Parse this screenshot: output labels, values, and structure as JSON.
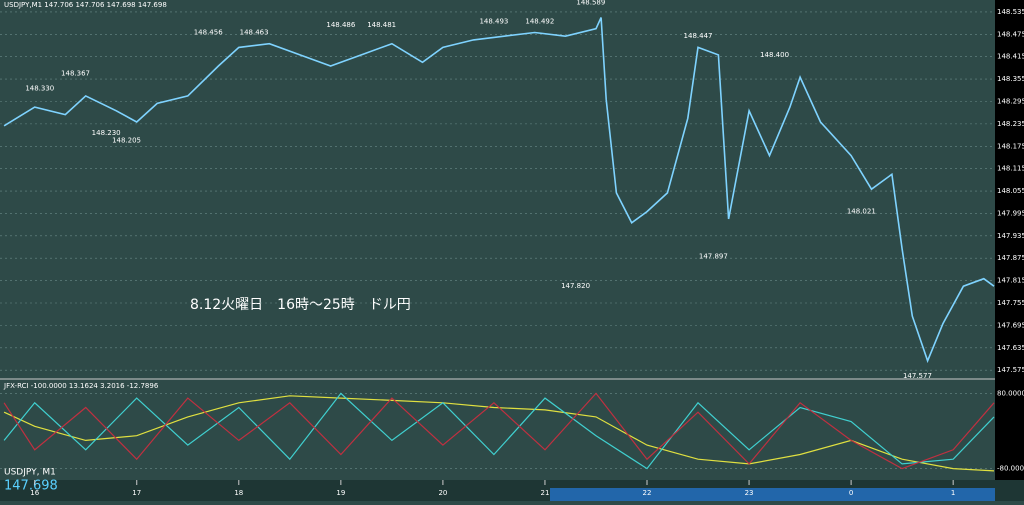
{
  "chart_data": [
    {
      "type": "line",
      "title": "USDJPY,M1  147.706 147.706 147.698 147.698",
      "annotation": "8.12火曜日　16時～25時　ドル円",
      "symbol_label": "USDJPY, M1",
      "last_price_label": "147.698",
      "color": "#7fd3ff",
      "x": [
        15.7,
        16.0,
        16.3,
        16.5,
        16.8,
        17.0,
        17.2,
        17.5,
        17.8,
        18.0,
        18.3,
        18.6,
        18.9,
        19.2,
        19.5,
        19.8,
        20.0,
        20.3,
        20.6,
        20.9,
        21.2,
        21.5,
        21.55,
        21.6,
        21.7,
        21.85,
        22.0,
        22.2,
        22.4,
        22.5,
        22.7,
        22.8,
        23.0,
        23.2,
        23.4,
        23.5,
        23.7,
        24.0,
        24.2,
        24.4,
        24.5,
        24.6,
        24.75,
        24.9,
        25.1,
        25.3,
        25.4
      ],
      "values": [
        148.23,
        148.28,
        148.26,
        148.31,
        148.27,
        148.24,
        148.29,
        148.31,
        148.39,
        148.44,
        148.45,
        148.42,
        148.39,
        148.42,
        148.45,
        148.4,
        148.44,
        148.46,
        148.47,
        148.48,
        148.47,
        148.49,
        148.52,
        148.3,
        148.05,
        147.97,
        148.0,
        148.05,
        148.25,
        148.44,
        148.42,
        147.98,
        148.27,
        148.15,
        148.28,
        148.36,
        148.24,
        148.15,
        148.06,
        148.1,
        147.9,
        147.72,
        147.6,
        147.7,
        147.8,
        147.82,
        147.8
      ],
      "annotations": [
        {
          "text": "148.330",
          "x": 16.05,
          "y": 148.33
        },
        {
          "text": "148.367",
          "x": 16.4,
          "y": 148.37
        },
        {
          "text": "148.230",
          "x": 16.7,
          "y": 148.21
        },
        {
          "text": "148.205",
          "x": 16.9,
          "y": 148.19
        },
        {
          "text": "148.456",
          "x": 17.7,
          "y": 148.48
        },
        {
          "text": "148.463",
          "x": 18.15,
          "y": 148.48
        },
        {
          "text": "148.486",
          "x": 19.0,
          "y": 148.5
        },
        {
          "text": "148.481",
          "x": 19.4,
          "y": 148.5
        },
        {
          "text": "148.493",
          "x": 20.5,
          "y": 148.51
        },
        {
          "text": "148.492",
          "x": 20.95,
          "y": 148.51
        },
        {
          "text": "148.589",
          "x": 21.45,
          "y": 148.56
        },
        {
          "text": "148.447",
          "x": 22.5,
          "y": 148.47
        },
        {
          "text": "148.400",
          "x": 23.25,
          "y": 148.42
        },
        {
          "text": "148.021",
          "x": 24.1,
          "y": 148.0
        },
        {
          "text": "147.897",
          "x": 22.65,
          "y": 147.88
        },
        {
          "text": "147.820",
          "x": 21.3,
          "y": 147.8
        },
        {
          "text": "147.577",
          "x": 24.65,
          "y": 147.56
        }
      ],
      "xlim": [
        15.66,
        25.41
      ],
      "xticks": [
        16,
        17,
        18,
        19,
        20,
        21,
        22,
        23,
        {
          "value": 24,
          "label": "0"
        },
        {
          "value": 25,
          "label": "1"
        }
      ],
      "ylim": [
        147.554,
        148.567
      ],
      "yticks": [
        148.535,
        148.475,
        148.415,
        148.355,
        148.295,
        148.235,
        148.175,
        148.115,
        148.055,
        147.995,
        147.935,
        147.875,
        147.815,
        147.755,
        147.695,
        147.635,
        147.575
      ],
      "grid": true
    },
    {
      "type": "line",
      "title": "JFX-RCI -100.0000 13.1624 3.2016 -12.7896",
      "x": [
        15.7,
        16.0,
        16.5,
        17.0,
        17.5,
        18.0,
        18.5,
        19.0,
        19.5,
        20.0,
        20.5,
        21.0,
        21.5,
        22.0,
        22.5,
        23.0,
        23.5,
        24.0,
        24.5,
        25.0,
        25.4
      ],
      "xlim": [
        15.66,
        25.41
      ],
      "ylim": [
        -100,
        100
      ],
      "yticks": [
        {
          "value": 80,
          "label": "80.0000"
        },
        {
          "value": -80,
          "label": "-80.0000"
        }
      ],
      "grid": true,
      "series": [
        {
          "color": "#e0e040",
          "values": [
            40,
            10,
            -20,
            -10,
            30,
            60,
            75,
            70,
            65,
            60,
            50,
            45,
            30,
            -30,
            -60,
            -70,
            -50,
            -20,
            -60,
            -80,
            -85
          ]
        },
        {
          "color": "#40d0d0",
          "values": [
            -20,
            60,
            -40,
            70,
            -30,
            50,
            -60,
            80,
            -20,
            60,
            -50,
            70,
            -10,
            -80,
            60,
            -40,
            50,
            20,
            -70,
            -60,
            30
          ]
        },
        {
          "color": "#c03040",
          "values": [
            60,
            -40,
            50,
            -60,
            70,
            -20,
            60,
            -50,
            70,
            -30,
            60,
            -40,
            80,
            -60,
            40,
            -70,
            60,
            -20,
            -80,
            -40,
            60
          ]
        }
      ]
    }
  ]
}
